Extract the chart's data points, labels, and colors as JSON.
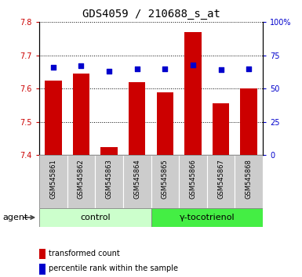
{
  "title": "GDS4059 / 210688_s_at",
  "samples": [
    "GSM545861",
    "GSM545862",
    "GSM545863",
    "GSM545864",
    "GSM545865",
    "GSM545866",
    "GSM545867",
    "GSM545868"
  ],
  "transformed_counts": [
    7.625,
    7.645,
    7.425,
    7.62,
    7.59,
    7.77,
    7.555,
    7.6
  ],
  "percentile_ranks": [
    66,
    67,
    63,
    65,
    65,
    68,
    64,
    65
  ],
  "ylim": [
    7.4,
    7.8
  ],
  "yticks": [
    7.4,
    7.5,
    7.6,
    7.7,
    7.8
  ],
  "right_yticks": [
    0,
    25,
    50,
    75,
    100
  ],
  "right_ylabels": [
    "0",
    "25",
    "50",
    "75",
    "100%"
  ],
  "bar_color": "#cc0000",
  "dot_color": "#0000cc",
  "bar_width": 0.6,
  "control_label": "control",
  "treatment_label": "γ-tocotrienol",
  "agent_label": "agent",
  "control_bg": "#ccffcc",
  "treatment_bg": "#44ee44",
  "sample_bg": "#cccccc",
  "legend_bar_label": "transformed count",
  "legend_dot_label": "percentile rank within the sample",
  "bar_color_legend": "#cc0000",
  "dot_color_legend": "#0000cc",
  "left_tick_color": "#cc0000",
  "right_tick_color": "#0000cc",
  "grid_color": "#000000",
  "title_fontsize": 10,
  "tick_fontsize": 7,
  "sample_fontsize": 6,
  "agent_fontsize": 8,
  "legend_fontsize": 7,
  "fig_width": 3.85,
  "fig_height": 3.54,
  "fig_dpi": 100
}
